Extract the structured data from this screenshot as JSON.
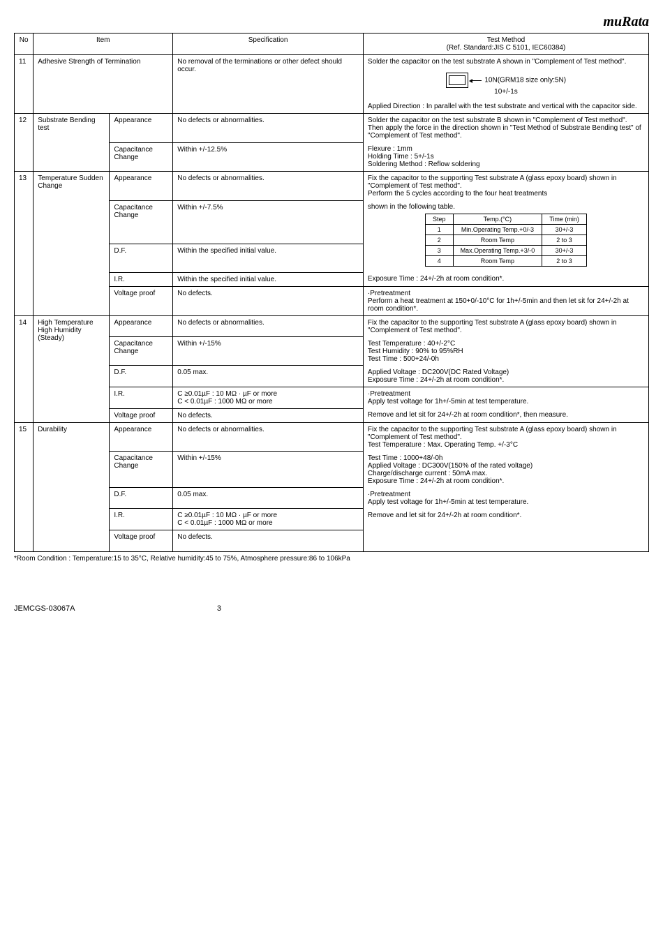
{
  "logo": "muRata",
  "header": {
    "no": "No",
    "item": "Item",
    "spec": "Specification",
    "method": "Test Method",
    "method_sub": "(Ref. Standard:JIS C 5101, IEC60384)"
  },
  "rows": [
    {
      "no": "11",
      "item_a": "Adhesive Strength of Termination",
      "spec": "No removal of the terminations or other defect should occur.",
      "method_pre": "Solder the capacitor on the test substrate A shown in \"Complement of Test method\".",
      "force_label": "10N(GRM18 size only:5N)\n10+/-1s",
      "method_post": "Applied Direction : In parallel with the test substrate and vertical with the capacitor side."
    },
    {
      "no": "12",
      "item_a": "Substrate Bending test",
      "sub": [
        {
          "b": "Appearance",
          "spec": "No defects or abnormalities.",
          "method": "Solder the capacitor on the test substrate B shown in \"Complement of Test method\".\nThen apply the force in the direction shown in \"Test Method of Substrate Bending test\" of \"Complement of Test method\"."
        },
        {
          "b": "Capacitance Change",
          "spec": "Within +/-12.5%",
          "method_lines": [
            "Flexure              :     1mm",
            "Holding Time      :     5+/-1s",
            "Soldering Method     :     Reflow soldering"
          ]
        }
      ]
    },
    {
      "no": "13",
      "item_a": "Temperature Sudden Change",
      "sub": [
        {
          "b": "Appearance",
          "spec": "No defects or abnormalities.",
          "method": "Fix the capacitor to the supporting Test substrate A (glass epoxy board) shown in \"Complement of Test method\".\nPerform the 5 cycles according to the four heat treatments"
        },
        {
          "b": "Capacitance Change",
          "spec": "Within +/-7.5%",
          "method": "shown in the following table.",
          "inner": {
            "head": [
              "Step",
              "Temp.(°C)",
              "Time (min)"
            ],
            "rows": [
              [
                "1",
                "Min.Operating Temp.+0/-3",
                "30+/-3"
              ],
              [
                "2",
                "Room Temp",
                "2 to 3"
              ],
              [
                "3",
                "Max.Operating Temp.+3/-0",
                "30+/-3"
              ],
              [
                "4",
                "Room Temp",
                "2 to 3"
              ]
            ]
          }
        },
        {
          "b": "D.F.",
          "spec": "Within the specified initial value."
        },
        {
          "b": "I.R.",
          "spec": "Within the specified initial value.",
          "method": "Exposure Time         :     24+/-2h at room condition*."
        },
        {
          "b": "Voltage proof",
          "spec": "No defects.",
          "method": "·Pretreatment\nPerform a heat treatment at 150+0/-10°C for 1h+/-5min and then let sit for 24+/-2h at room condition*."
        }
      ]
    },
    {
      "no": "14",
      "item_a": "High Temperature High Humidity (Steady)",
      "sub": [
        {
          "b": "Appearance",
          "spec": "No defects or abnormalities.",
          "method": "Fix the capacitor to the supporting Test substrate A (glass epoxy board) shown in \"Complement of Test method\"."
        },
        {
          "b": "Capacitance Change",
          "spec": "Within +/-15%",
          "method_lines": [
            "Test Temperature     :     40+/-2°C",
            "Test Humidity             :     90% to 95%RH",
            "Test Time                   :     500+24/-0h"
          ]
        },
        {
          "b": "D.F.",
          "spec": "0.05 max.",
          "method_lines": [
            "Applied Voltage          :     DC200V(DC Rated Voltage)",
            "Exposure Time          :     24+/-2h at room condition*."
          ]
        },
        {
          "b": "I.R.",
          "spec": "C ≥0.01µF : 10 MΩ · µF or more\nC < 0.01µF : 1000 MΩ or more",
          "method": "·Pretreatment\nApply test voltage for 1h+/-5min at test  temperature."
        },
        {
          "b": "Voltage proof",
          "spec": "No defects.",
          "method": "Remove and let sit for 24+/-2h at room condition*, then measure."
        }
      ]
    },
    {
      "no": "15",
      "item_a": "Durability",
      "sub": [
        {
          "b": "Appearance",
          "spec": "No defects or abnormalities.",
          "method": "Fix the capacitor to the supporting Test substrate A (glass epoxy board) shown in \"Complement of Test method\".\nTest Temperature       :       Max. Operating Temp. +/-3°C"
        },
        {
          "b": "Capacitance Change",
          "spec": "Within +/-15%",
          "method_lines": [
            "Test Time                    :     1000+48/-0h",
            "Applied Voltage           :       DC300V(150% of the rated voltage)",
            "Charge/discharge current  : 50mA max.",
            "Exposure Time            :     24+/-2h at room condition*."
          ]
        },
        {
          "b": "D.F.",
          "spec": "0.05 max.",
          "method": "·Pretreatment\nApply test voltage for 1h+/-5min at test  temperature."
        },
        {
          "b": "I.R.",
          "spec": "C ≥0.01µF : 10 MΩ · µF or more\nC < 0.01µF : 1000 MΩ or more",
          "method": "Remove and let sit for 24+/-2h at room condition*."
        },
        {
          "b": "Voltage proof",
          "spec": "No defects."
        }
      ]
    }
  ],
  "footnote": "*Room Condition :  Temperature:15 to 35°C, Relative humidity:45 to 75%, Atmosphere pressure:86 to 106kPa",
  "footer_left": "JEMCGS-03067A",
  "footer_page": "3"
}
